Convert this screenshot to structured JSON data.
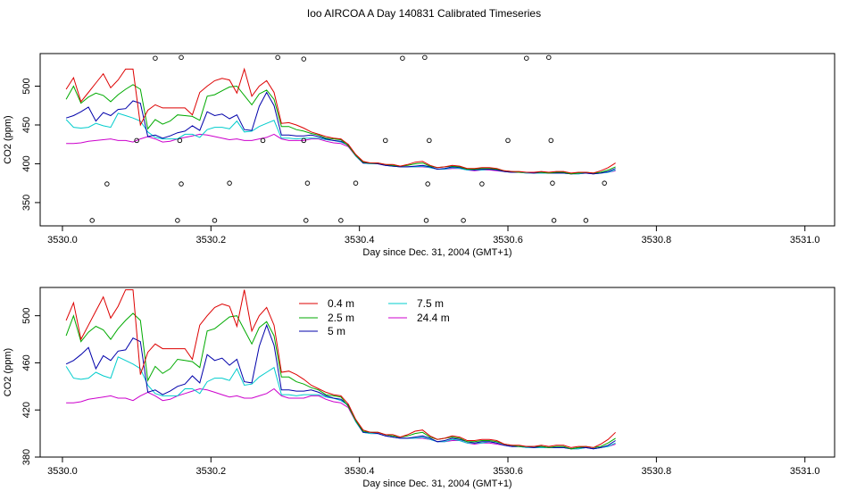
{
  "title": "Ioo AIRCOA A  Day 140831  Calibrated Timeseries",
  "colors": {
    "0.4 m": "#dd0000",
    "2.5 m": "#00aa00",
    "5 m": "#0000aa",
    "7.5 m": "#00cccc",
    "24.4 m": "#cc00cc"
  },
  "chart_data": [
    {
      "type": "line",
      "name": "top",
      "xlabel": "Day since Dec. 31, 2004 (GMT+1)",
      "ylabel": "CO2 (ppm)",
      "xlim": [
        3529.97,
        3531.04
      ],
      "ylim": [
        320,
        542
      ],
      "xticks": [
        "3530.0",
        "3530.2",
        "3530.4",
        "3530.6",
        "3530.8",
        "3531.0"
      ],
      "yticks": [
        "350",
        "400",
        "450",
        "500"
      ],
      "x": [
        3530.005,
        3530.015,
        3530.025,
        3530.035,
        3530.045,
        3530.055,
        3530.065,
        3530.075,
        3530.085,
        3530.095,
        3530.105,
        3530.115,
        3530.125,
        3530.135,
        3530.145,
        3530.155,
        3530.165,
        3530.175,
        3530.185,
        3530.195,
        3530.205,
        3530.215,
        3530.225,
        3530.235,
        3530.245,
        3530.255,
        3530.265,
        3530.275,
        3530.285,
        3530.295,
        3530.305,
        3530.315,
        3530.325,
        3530.335,
        3530.345,
        3530.355,
        3530.365,
        3530.375,
        3530.385,
        3530.395,
        3530.405,
        3530.415,
        3530.425,
        3530.435,
        3530.445,
        3530.455,
        3530.465,
        3530.475,
        3530.485,
        3530.495,
        3530.505,
        3530.515,
        3530.525,
        3530.535,
        3530.545,
        3530.555,
        3530.565,
        3530.575,
        3530.585,
        3530.595,
        3530.605,
        3530.615,
        3530.625,
        3530.635,
        3530.645,
        3530.655,
        3530.665,
        3530.675,
        3530.685,
        3530.695,
        3530.705,
        3530.715,
        3530.725,
        3530.735,
        3530.745
      ],
      "series": [
        {
          "name": "0.4 m",
          "values": [
            496,
            511,
            480,
            492,
            504,
            516,
            498,
            508,
            522,
            522,
            450,
            469,
            476,
            472,
            472,
            472,
            472,
            463,
            492,
            500,
            507,
            510,
            508,
            491,
            522,
            487,
            500,
            507,
            492,
            452,
            453,
            450,
            446,
            441,
            438,
            435,
            433,
            432,
            425,
            412,
            403,
            401,
            401,
            399,
            399,
            397,
            399,
            402,
            403,
            398,
            395,
            396,
            398,
            397,
            394,
            394,
            395,
            395,
            394,
            391,
            390,
            390,
            389,
            389,
            390,
            389,
            390,
            390,
            388,
            389,
            389,
            388,
            391,
            395,
            401
          ]
        },
        {
          "name": "2.5 m",
          "values": [
            483,
            500,
            478,
            486,
            491,
            488,
            480,
            489,
            496,
            502,
            496,
            445,
            457,
            451,
            455,
            463,
            462,
            461,
            456,
            487,
            489,
            494,
            499,
            500,
            488,
            476,
            490,
            495,
            483,
            448,
            448,
            444,
            442,
            439,
            437,
            433,
            432,
            431,
            423,
            411,
            402,
            401,
            401,
            399,
            398,
            397,
            398,
            400,
            401,
            397,
            395,
            396,
            397,
            396,
            393,
            393,
            394,
            394,
            393,
            391,
            390,
            389,
            389,
            389,
            389,
            388,
            389,
            389,
            387,
            388,
            389,
            388,
            389,
            392,
            396
          ]
        },
        {
          "name": "5 m",
          "values": [
            459,
            462,
            467,
            473,
            455,
            466,
            462,
            470,
            471,
            481,
            478,
            435,
            437,
            433,
            436,
            440,
            442,
            449,
            443,
            467,
            462,
            464,
            458,
            463,
            444,
            443,
            474,
            492,
            475,
            437,
            437,
            436,
            436,
            437,
            435,
            432,
            430,
            429,
            424,
            411,
            401,
            401,
            400,
            398,
            397,
            396,
            396,
            397,
            398,
            396,
            393,
            394,
            396,
            395,
            393,
            392,
            393,
            393,
            392,
            390,
            389,
            389,
            389,
            388,
            389,
            388,
            388,
            388,
            387,
            388,
            388,
            387,
            388,
            390,
            394
          ]
        },
        {
          "name": "7.5 m",
          "values": [
            457,
            447,
            446,
            447,
            452,
            449,
            447,
            465,
            462,
            459,
            455,
            441,
            434,
            432,
            432,
            432,
            438,
            438,
            434,
            444,
            447,
            447,
            445,
            455,
            441,
            442,
            448,
            452,
            456,
            433,
            433,
            432,
            433,
            433,
            433,
            431,
            430,
            428,
            424,
            410,
            401,
            400,
            400,
            398,
            397,
            396,
            396,
            396,
            397,
            395,
            393,
            393,
            395,
            394,
            392,
            392,
            392,
            393,
            392,
            390,
            389,
            389,
            388,
            388,
            388,
            388,
            388,
            388,
            387,
            387,
            388,
            387,
            388,
            389,
            392
          ]
        },
        {
          "name": "24.4 m",
          "values": [
            426,
            426,
            427,
            429,
            430,
            431,
            432,
            430,
            430,
            428,
            432,
            435,
            432,
            428,
            429,
            432,
            434,
            436,
            438,
            437,
            435,
            433,
            431,
            432,
            430,
            430,
            432,
            434,
            438,
            432,
            430,
            430,
            430,
            432,
            432,
            429,
            427,
            426,
            422,
            410,
            401,
            400,
            400,
            398,
            397,
            396,
            396,
            396,
            396,
            395,
            393,
            393,
            394,
            394,
            392,
            391,
            392,
            392,
            391,
            390,
            389,
            389,
            388,
            388,
            388,
            388,
            388,
            388,
            387,
            387,
            388,
            387,
            388,
            389,
            391
          ]
        }
      ],
      "markers": {
        "x": [
          3530.04,
          3530.06,
          3530.1,
          3530.125,
          3530.155,
          3530.16,
          3530.158,
          3530.16,
          3530.205,
          3530.225,
          3530.27,
          3530.29,
          3530.325,
          3530.328,
          3530.33,
          3530.325,
          3530.375,
          3530.395,
          3530.435,
          3530.458,
          3530.49,
          3530.492,
          3530.494,
          3530.488,
          3530.54,
          3530.565,
          3530.6,
          3530.625,
          3530.655,
          3530.658,
          3530.66,
          3530.662,
          3530.705,
          3530.73
        ],
        "y": [
          327,
          374,
          430,
          536,
          327,
          374,
          430,
          537,
          327,
          375,
          430,
          537,
          535,
          327,
          375,
          430,
          327,
          375,
          430,
          536,
          327,
          374,
          430,
          537,
          327,
          374,
          430,
          536,
          537,
          430,
          375,
          327,
          327,
          375
        ]
      }
    },
    {
      "type": "line",
      "name": "bottom",
      "xlabel": "Day since Dec. 31, 2004 (GMT+1)",
      "ylabel": "CO2 (ppm)",
      "xlim": [
        3529.97,
        3531.04
      ],
      "ylim": [
        380,
        524
      ],
      "xticks": [
        "3530.0",
        "3530.2",
        "3530.4",
        "3530.6",
        "3530.8",
        "3531.0"
      ],
      "yticks": [
        "380",
        "420",
        "460",
        "500"
      ],
      "legend": [
        "0.4 m",
        "2.5 m",
        "5 m",
        "7.5 m",
        "24.4 m"
      ],
      "legend_position": "top-left",
      "x": [
        3530.005,
        3530.015,
        3530.025,
        3530.035,
        3530.045,
        3530.055,
        3530.065,
        3530.075,
        3530.085,
        3530.095,
        3530.105,
        3530.115,
        3530.125,
        3530.135,
        3530.145,
        3530.155,
        3530.165,
        3530.175,
        3530.185,
        3530.195,
        3530.205,
        3530.215,
        3530.225,
        3530.235,
        3530.245,
        3530.255,
        3530.265,
        3530.275,
        3530.285,
        3530.295,
        3530.305,
        3530.315,
        3530.325,
        3530.335,
        3530.345,
        3530.355,
        3530.365,
        3530.375,
        3530.385,
        3530.395,
        3530.405,
        3530.415,
        3530.425,
        3530.435,
        3530.445,
        3530.455,
        3530.465,
        3530.475,
        3530.485,
        3530.495,
        3530.505,
        3530.515,
        3530.525,
        3530.535,
        3530.545,
        3530.555,
        3530.565,
        3530.575,
        3530.585,
        3530.595,
        3530.605,
        3530.615,
        3530.625,
        3530.635,
        3530.645,
        3530.655,
        3530.665,
        3530.675,
        3530.685,
        3530.695,
        3530.705,
        3530.715,
        3530.725,
        3530.735,
        3530.745
      ],
      "series": [
        {
          "name": "0.4 m",
          "values": [
            496,
            511,
            480,
            492,
            504,
            516,
            498,
            508,
            522,
            522,
            450,
            469,
            476,
            472,
            472,
            472,
            472,
            463,
            492,
            500,
            507,
            510,
            508,
            491,
            522,
            487,
            500,
            507,
            492,
            452,
            453,
            450,
            446,
            441,
            438,
            435,
            433,
            432,
            425,
            412,
            403,
            401,
            401,
            399,
            399,
            397,
            399,
            402,
            403,
            398,
            395,
            396,
            398,
            397,
            394,
            394,
            395,
            395,
            394,
            391,
            390,
            390,
            389,
            389,
            390,
            389,
            390,
            390,
            388,
            389,
            389,
            388,
            391,
            395,
            401
          ]
        },
        {
          "name": "2.5 m",
          "values": [
            483,
            500,
            478,
            486,
            491,
            488,
            480,
            489,
            496,
            502,
            496,
            445,
            457,
            451,
            455,
            463,
            462,
            461,
            456,
            487,
            489,
            494,
            499,
            500,
            488,
            476,
            490,
            495,
            483,
            448,
            448,
            444,
            442,
            439,
            437,
            433,
            432,
            431,
            423,
            411,
            402,
            401,
            401,
            399,
            398,
            397,
            398,
            400,
            401,
            397,
            395,
            396,
            397,
            396,
            393,
            393,
            394,
            394,
            393,
            391,
            390,
            389,
            389,
            389,
            389,
            388,
            389,
            389,
            387,
            388,
            389,
            388,
            389,
            392,
            396
          ]
        },
        {
          "name": "5 m",
          "values": [
            459,
            462,
            467,
            473,
            455,
            466,
            462,
            470,
            471,
            481,
            478,
            435,
            437,
            433,
            436,
            440,
            442,
            449,
            443,
            467,
            462,
            464,
            458,
            463,
            444,
            443,
            474,
            492,
            475,
            437,
            437,
            436,
            436,
            437,
            435,
            432,
            430,
            429,
            424,
            411,
            401,
            401,
            400,
            398,
            397,
            396,
            396,
            397,
            398,
            396,
            393,
            394,
            396,
            395,
            393,
            392,
            393,
            393,
            392,
            390,
            389,
            389,
            389,
            388,
            389,
            388,
            388,
            388,
            387,
            388,
            388,
            387,
            388,
            390,
            394
          ]
        },
        {
          "name": "7.5 m",
          "values": [
            457,
            447,
            446,
            447,
            452,
            449,
            447,
            465,
            462,
            459,
            455,
            441,
            434,
            432,
            432,
            432,
            438,
            438,
            434,
            444,
            447,
            447,
            445,
            455,
            441,
            442,
            448,
            452,
            456,
            433,
            433,
            432,
            433,
            433,
            433,
            431,
            430,
            428,
            424,
            410,
            401,
            400,
            400,
            398,
            397,
            396,
            396,
            396,
            397,
            395,
            393,
            393,
            395,
            394,
            392,
            392,
            392,
            393,
            392,
            390,
            389,
            389,
            388,
            388,
            388,
            388,
            388,
            388,
            387,
            387,
            388,
            387,
            388,
            389,
            392
          ]
        },
        {
          "name": "24.4 m",
          "values": [
            426,
            426,
            427,
            429,
            430,
            431,
            432,
            430,
            430,
            428,
            432,
            435,
            432,
            428,
            429,
            432,
            434,
            436,
            438,
            437,
            435,
            433,
            431,
            432,
            430,
            430,
            432,
            434,
            438,
            432,
            430,
            430,
            430,
            432,
            432,
            429,
            427,
            426,
            422,
            410,
            401,
            400,
            400,
            398,
            397,
            396,
            396,
            396,
            396,
            395,
            393,
            393,
            394,
            394,
            392,
            391,
            392,
            392,
            391,
            390,
            389,
            389,
            388,
            388,
            388,
            388,
            388,
            388,
            387,
            387,
            388,
            387,
            388,
            389,
            391
          ]
        }
      ]
    }
  ]
}
